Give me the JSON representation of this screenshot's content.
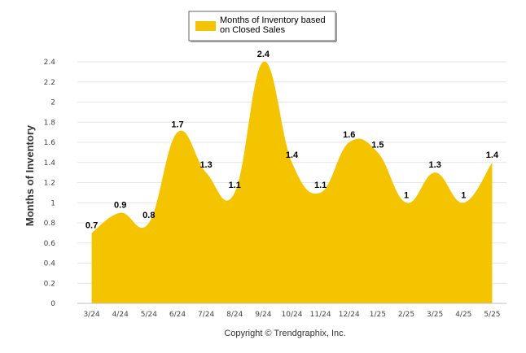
{
  "chart_data": {
    "type": "area",
    "categories": [
      "3/24",
      "4/24",
      "5/24",
      "6/24",
      "7/24",
      "8/24",
      "9/24",
      "10/24",
      "11/24",
      "12/24",
      "1/25",
      "2/25",
      "3/25",
      "4/25",
      "5/25"
    ],
    "series": [
      {
        "name": "Months of Inventory based on Closed Sales",
        "values": [
          0.7,
          0.9,
          0.8,
          1.7,
          1.3,
          1.1,
          2.4,
          1.4,
          1.1,
          1.6,
          1.5,
          1,
          1.3,
          1,
          1.4
        ],
        "data_labels": [
          "0.7",
          "0.9",
          "0.8",
          "1.7",
          "1.3",
          "1.1",
          "2.4",
          "1.4",
          "1.1",
          "1.6",
          "1.5",
          "1",
          "1.3",
          "1",
          "1.4"
        ],
        "color": "#F5C400"
      }
    ],
    "ylabel": "Months of Inventory",
    "xlabel": "",
    "ylim": [
      0,
      2.4
    ],
    "yticks": [
      "0",
      "0.2",
      "0.4",
      "0.6",
      "0.8",
      "1",
      "1.2",
      "1.4",
      "1.6",
      "1.8",
      "2",
      "2.2",
      "2.4"
    ],
    "legend": {
      "position": "top-center",
      "line1": "Months of Inventory based",
      "line2": "on Closed Sales"
    },
    "grid": true,
    "grid_color": "#E6E6E6",
    "copyright": "Copyright © Trendgraphix, Inc."
  }
}
